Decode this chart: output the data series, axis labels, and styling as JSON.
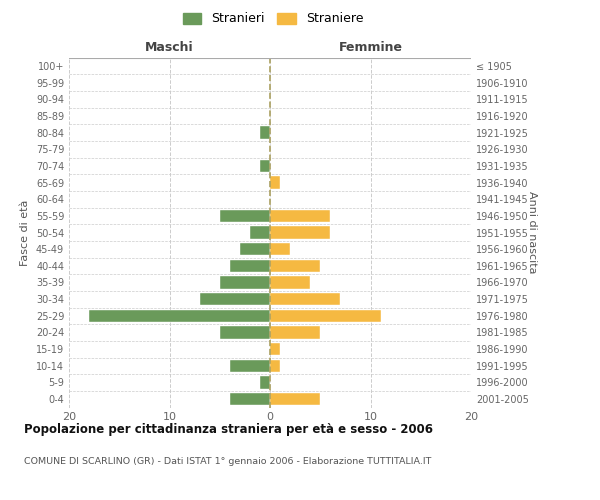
{
  "age_groups": [
    "0-4",
    "5-9",
    "10-14",
    "15-19",
    "20-24",
    "25-29",
    "30-34",
    "35-39",
    "40-44",
    "45-49",
    "50-54",
    "55-59",
    "60-64",
    "65-69",
    "70-74",
    "75-79",
    "80-84",
    "85-89",
    "90-94",
    "95-99",
    "100+"
  ],
  "birth_years": [
    "2001-2005",
    "1996-2000",
    "1991-1995",
    "1986-1990",
    "1981-1985",
    "1976-1980",
    "1971-1975",
    "1966-1970",
    "1961-1965",
    "1956-1960",
    "1951-1955",
    "1946-1950",
    "1941-1945",
    "1936-1940",
    "1931-1935",
    "1926-1930",
    "1921-1925",
    "1916-1920",
    "1911-1915",
    "1906-1910",
    "≤ 1905"
  ],
  "maschi": [
    4,
    1,
    4,
    0,
    5,
    18,
    7,
    5,
    4,
    3,
    2,
    5,
    0,
    0,
    1,
    0,
    1,
    0,
    0,
    0,
    0
  ],
  "femmine": [
    5,
    0,
    1,
    1,
    5,
    11,
    7,
    4,
    5,
    2,
    6,
    6,
    0,
    1,
    0,
    0,
    0,
    0,
    0,
    0,
    0
  ],
  "color_maschi": "#6a9a5a",
  "color_femmine": "#f5b942",
  "title1": "Popolazione per cittadinanza straniera per età e sesso - 2006",
  "title2": "COMUNE DI SCARLINO (GR) - Dati ISTAT 1° gennaio 2006 - Elaborazione TUTTITALIA.IT",
  "legend_maschi": "Stranieri",
  "legend_femmine": "Straniere",
  "header_left": "Maschi",
  "header_right": "Femmine",
  "ylabel_left": "Fasce di età",
  "ylabel_right": "Anni di nascita",
  "xlim": 20,
  "background_color": "#ffffff",
  "grid_color": "#cccccc"
}
